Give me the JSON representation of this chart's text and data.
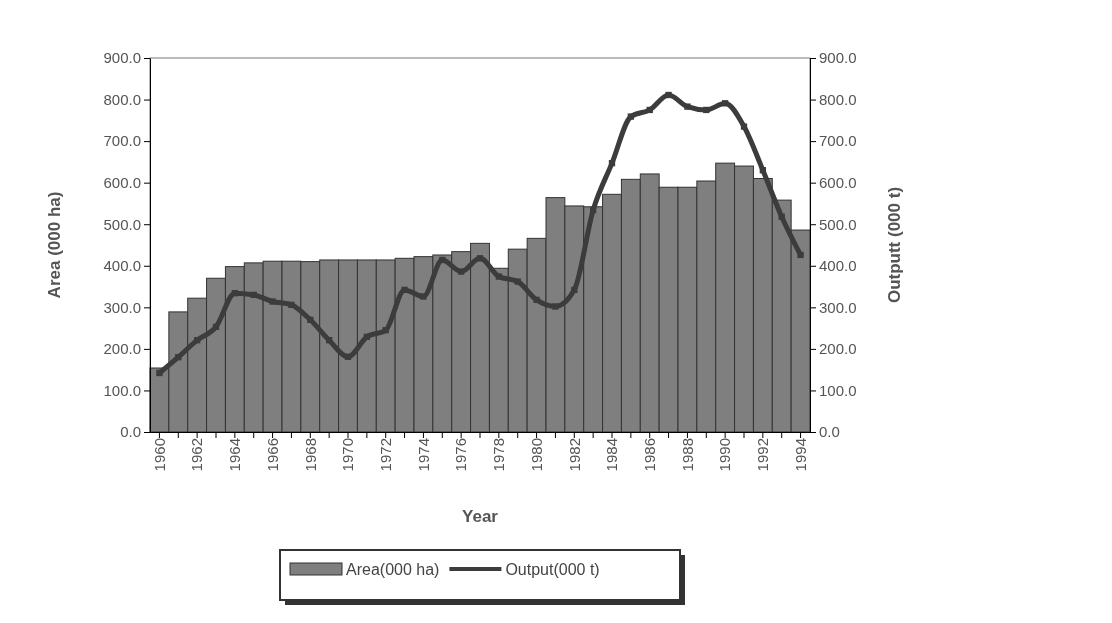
{
  "chart_data": {
    "type": "bar",
    "xlabel": "Year",
    "ylabel": "Area (000 ha)",
    "y2label": "Outputt (000 t)",
    "categories": [
      "1960",
      null,
      "1962",
      null,
      "1964",
      null,
      "1966",
      null,
      "1968",
      null,
      "1970",
      null,
      "1972",
      null,
      "1974",
      null,
      "1976",
      null,
      "1978",
      null,
      "1980",
      null,
      "1982",
      null,
      "1984",
      null,
      "1986",
      null,
      "1988",
      null,
      "1990",
      null,
      "1992",
      null,
      "1994"
    ],
    "series": [
      {
        "name": "Area(000 ha)",
        "color": "#7f7f7f",
        "values": [
          154,
          289,
          322,
          370,
          398,
          407,
          411,
          411,
          410,
          414,
          414,
          414,
          414,
          418,
          422,
          426,
          434,
          454,
          394,
          440,
          466,
          564,
          544,
          542,
          572,
          608,
          621,
          589,
          589,
          604,
          647,
          640,
          610,
          558,
          486
        ]
      },
      {
        "name": "Output(000 t)",
        "type": "line",
        "axis": "y2",
        "color": "#3c3c3c",
        "values": [
          142,
          180,
          221,
          253,
          334,
          330,
          314,
          306,
          270,
          221,
          181,
          229,
          245,
          342,
          326,
          414,
          386,
          418,
          374,
          362,
          318,
          302,
          342,
          534,
          647,
          759,
          775,
          811,
          783,
          775,
          791,
          735,
          630,
          518,
          426
        ]
      }
    ],
    "ylim": [
      0,
      900
    ],
    "yticks": [
      {
        "value": 0,
        "label": "0.0"
      },
      {
        "value": 100,
        "label": "100.0"
      },
      {
        "value": 200,
        "label": "200.0"
      },
      {
        "value": 300,
        "label": "300.0"
      },
      {
        "value": 400,
        "label": "400.0"
      },
      {
        "value": 500,
        "label": "500.0"
      },
      {
        "value": 600,
        "label": "600.0"
      },
      {
        "value": 700,
        "label": "700.0"
      },
      {
        "value": 800,
        "label": "800.0"
      },
      {
        "value": 900,
        "label": "900.0"
      }
    ],
    "y2lim": [
      0,
      900
    ],
    "y2ticks": [
      {
        "value": 0,
        "label": "0.0"
      },
      {
        "value": 100,
        "label": "100.0"
      },
      {
        "value": 200,
        "label": "200.0"
      },
      {
        "value": 300,
        "label": "300.0"
      },
      {
        "value": 400,
        "label": "400.0"
      },
      {
        "value": 500,
        "label": "500.0"
      },
      {
        "value": 600,
        "label": "600.0"
      },
      {
        "value": 700,
        "label": "700.0"
      },
      {
        "value": 800,
        "label": "800.0"
      },
      {
        "value": 900,
        "label": "900.0"
      }
    ],
    "legend": "bottom",
    "marker": "square",
    "grid": false
  }
}
